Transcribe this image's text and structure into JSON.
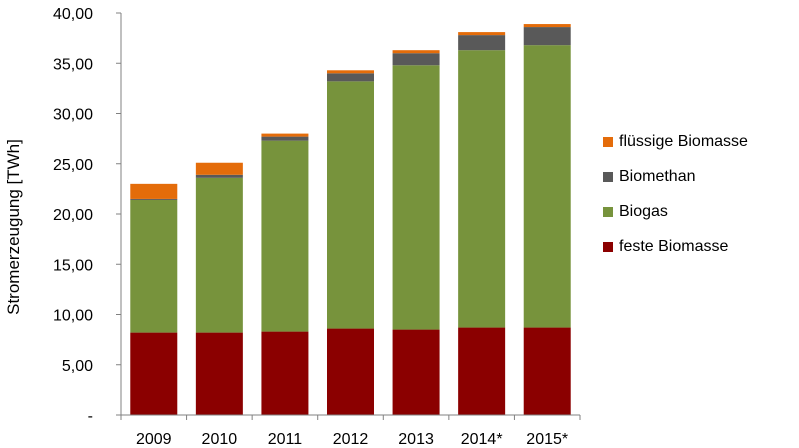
{
  "chart_data": {
    "type": "bar",
    "stacked": true,
    "title": "",
    "xlabel": "",
    "ylabel": "Stromerzeugung [TWh]",
    "ylim": [
      0,
      40
    ],
    "ytick_values": [
      0,
      5,
      10,
      15,
      20,
      25,
      30,
      35,
      40
    ],
    "ytick_labels": [
      "-",
      "5,00",
      "10,00",
      "15,00",
      "20,00",
      "25,00",
      "30,00",
      "35,00",
      "40,00"
    ],
    "grid": false,
    "legend_position": "right",
    "categories": [
      "2009",
      "2010",
      "2011",
      "2012",
      "2013",
      "2014*",
      "2015*"
    ],
    "series": [
      {
        "name": "feste Biomasse",
        "color": "#8b0000",
        "values": [
          8.2,
          8.2,
          8.3,
          8.6,
          8.5,
          8.7,
          8.7
        ]
      },
      {
        "name": "Biogas",
        "color": "#77933c",
        "values": [
          13.2,
          15.4,
          19.0,
          24.6,
          26.3,
          27.6,
          28.1
        ]
      },
      {
        "name": "Biomethan",
        "color": "#595959",
        "values": [
          0.1,
          0.3,
          0.4,
          0.8,
          1.2,
          1.5,
          1.8
        ]
      },
      {
        "name": "flüssige Biomasse",
        "color": "#e46c0a",
        "values": [
          1.5,
          1.2,
          0.3,
          0.3,
          0.3,
          0.3,
          0.3
        ]
      }
    ]
  }
}
